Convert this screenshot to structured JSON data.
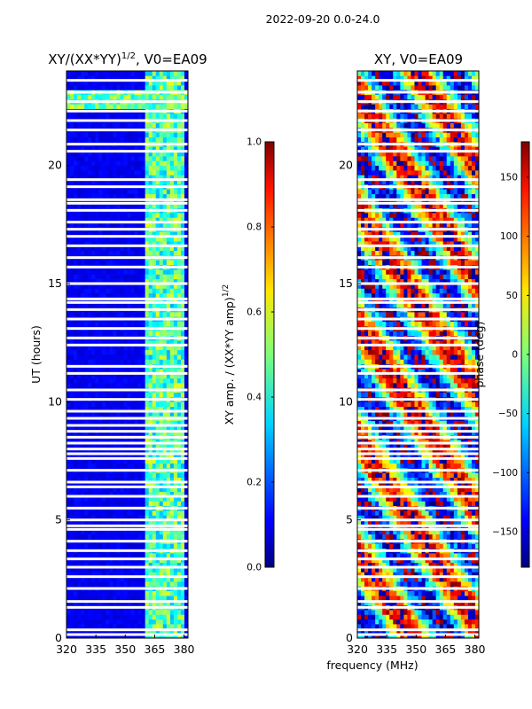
{
  "figure_title": "2022-09-20 0.0-24.0",
  "common_xlabel": "frequency (MHz)",
  "chart_data": [
    {
      "type": "heatmap",
      "title": "XY/(XX*YY)",
      "title_exp": "1/2",
      "title_suffix": ", V0=EA09",
      "xlabel": "",
      "ylabel": "UT (hours)",
      "xlim": [
        320,
        382
      ],
      "ylim": [
        0,
        24
      ],
      "xticks": [
        320,
        335,
        350,
        365,
        380
      ],
      "yticks": [
        0,
        5,
        10,
        15,
        20
      ],
      "colorbar": {
        "label": "XY amp. / (XX*YY amp)",
        "label_exp": "1/2",
        "range": [
          0.0,
          1.0
        ],
        "ticks": [
          "0.0",
          "0.2",
          "0.4",
          "0.6",
          "0.8",
          "1.0"
        ],
        "tick_values": [
          0.0,
          0.2,
          0.4,
          0.6,
          0.8,
          1.0
        ]
      },
      "high_band_mhz": [
        361,
        381
      ],
      "background_value": 0.08,
      "data_gaps_ut": [
        0.15,
        0.35,
        1.3,
        1.55,
        2.1,
        2.6,
        3.0,
        3.35,
        3.7,
        4.1,
        4.6,
        4.75,
        5.0,
        5.5,
        6.0,
        6.4,
        6.6,
        7.1,
        7.6,
        7.8,
        8.0,
        8.25,
        8.5,
        8.75,
        9.0,
        9.3,
        9.6,
        10.1,
        10.5,
        11.2,
        11.5,
        12.4,
        12.7,
        13.1,
        13.5,
        13.9,
        14.2,
        14.35,
        15.0,
        15.7,
        16.1,
        16.6,
        17.0,
        17.3,
        17.6,
        18.1,
        18.4,
        18.55,
        19.1,
        19.4,
        20.6,
        20.9,
        21.5,
        21.9,
        22.3,
        22.7,
        23.1,
        23.6
      ],
      "notes": "Mostly low normalized amplitude (~0.05-0.15) below 362 MHz; channels 362-381 MHz show 0.3-0.6 in vertical stripes; bright 0.4-0.6 block around UT 22.5-23.2 across all frequencies."
    },
    {
      "type": "heatmap",
      "title": "XY, V0=EA09",
      "xlabel": "",
      "ylabel": "",
      "xlim": [
        320,
        382
      ],
      "ylim": [
        0,
        24
      ],
      "xticks": [
        320,
        335,
        350,
        365,
        380
      ],
      "yticks": [
        0,
        5,
        10,
        15,
        20
      ],
      "colorbar": {
        "label": "phase (deg)",
        "range": [
          -180,
          180
        ],
        "ticks": [
          "150",
          "100",
          "50",
          "0",
          "−50",
          "−100",
          "−150"
        ],
        "tick_values": [
          150,
          100,
          50,
          0,
          -50,
          -100,
          -150
        ]
      },
      "data_gaps_ut": [
        0.15,
        0.35,
        1.3,
        1.55,
        2.1,
        2.6,
        3.0,
        3.35,
        3.7,
        4.1,
        4.6,
        4.75,
        5.0,
        5.5,
        6.0,
        6.4,
        6.6,
        7.1,
        7.6,
        7.8,
        8.0,
        8.25,
        8.5,
        8.75,
        9.0,
        9.3,
        9.6,
        10.1,
        10.5,
        11.2,
        11.5,
        12.4,
        12.7,
        13.1,
        13.5,
        13.9,
        14.2,
        14.35,
        15.0,
        15.7,
        16.1,
        16.6,
        17.0,
        17.3,
        17.6,
        18.1,
        18.4,
        18.55,
        19.1,
        19.4,
        20.6,
        20.9,
        21.5,
        21.9,
        22.3,
        22.7,
        23.1,
        23.6
      ],
      "notes": "Phase varies across full -180 to 180 deg range with wrapping structure."
    }
  ]
}
